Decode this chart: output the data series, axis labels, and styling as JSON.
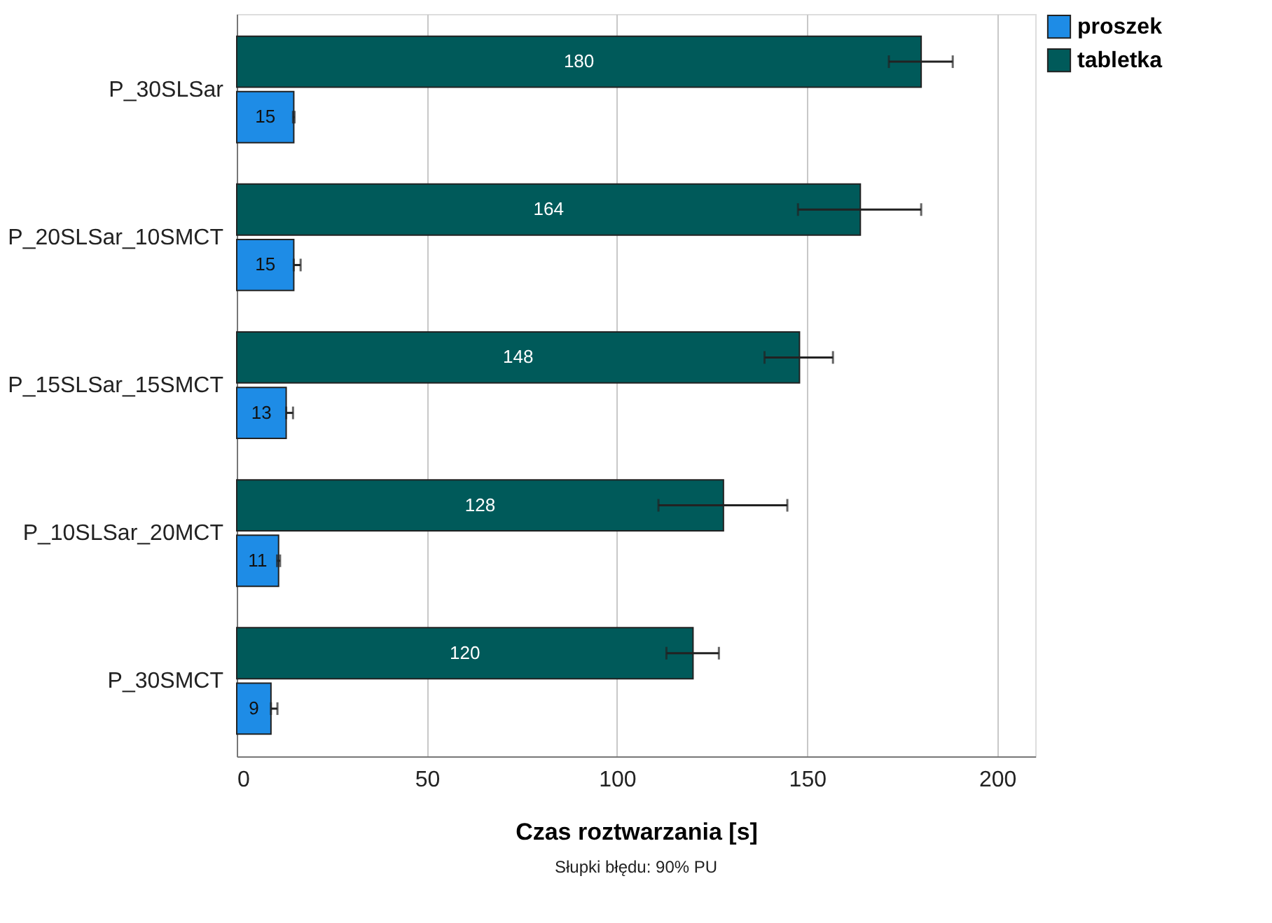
{
  "chart_data": {
    "type": "bar",
    "orientation": "horizontal",
    "xlabel": "Czas roztwarzania [s]",
    "categories": [
      "P_30SLSar",
      "P_20SLSar_10SMCT",
      "P_15SLSar_15SMCT",
      "P_10SLSar_20MCT",
      "P_30SMCT"
    ],
    "series": [
      {
        "name": "proszek",
        "color": "#1e8ce6",
        "values": [
          15,
          15,
          13,
          11,
          9
        ],
        "errors": [
          [
            14.8,
            15.2
          ],
          [
            15,
            16.8
          ],
          [
            13,
            14.8
          ],
          [
            10.6,
            11.4
          ],
          [
            9,
            10.7
          ]
        ]
      },
      {
        "name": "tabletka",
        "color": "#005a5a",
        "values": [
          180,
          164,
          148,
          128,
          120
        ],
        "errors": [
          [
            171.5,
            188.3
          ],
          [
            147.6,
            180.0
          ],
          [
            138.8,
            156.8
          ],
          [
            110.9,
            144.8
          ],
          [
            113.0,
            126.8
          ]
        ]
      }
    ],
    "xlim": [
      0,
      210
    ],
    "xticks": [
      0,
      50,
      100,
      150,
      200
    ],
    "grid": "x",
    "legend": "top right",
    "data_labels": true,
    "annotations": [
      "Słupki błędu: 90% PU"
    ]
  }
}
